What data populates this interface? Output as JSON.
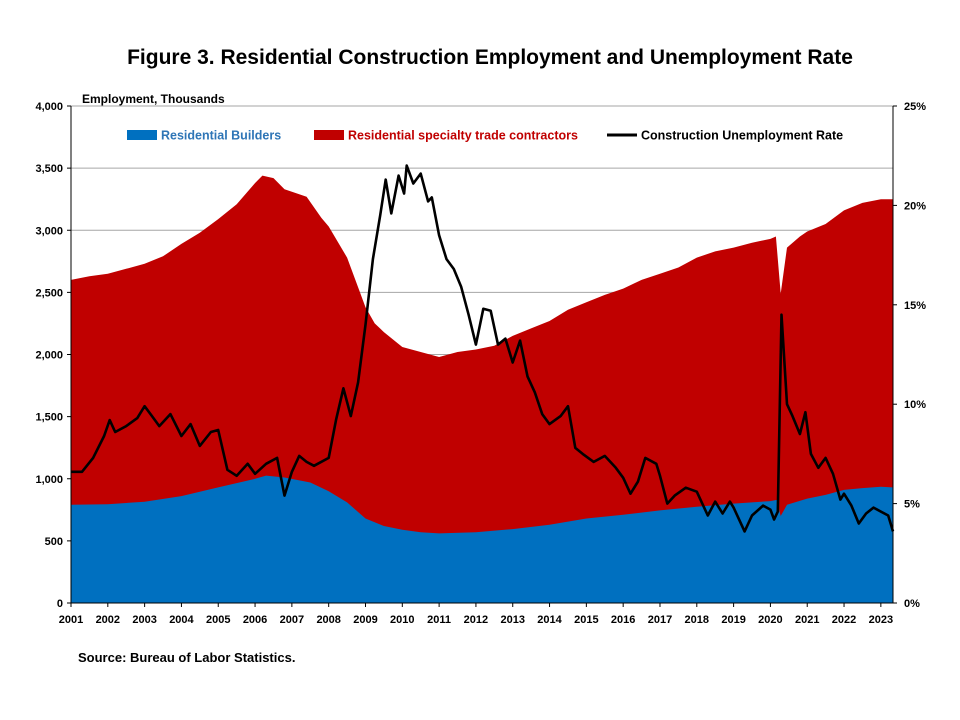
{
  "title": "Figure 3. Residential Construction Employment and Unemployment Rate",
  "source": "Source: Bureau of Labor Statistics.",
  "colors": {
    "builders": "#0070C0",
    "specialty": "#C00000",
    "rate": "#000000",
    "grid": "#A6A6A6"
  },
  "chart_data": {
    "type": "area",
    "title": "Figure 3. Residential Construction Employment and Unemployment Rate",
    "ylabel": "Employment, Thousands",
    "ylim": [
      0,
      4000
    ],
    "y2lim": [
      0,
      25
    ],
    "x_range": [
      2001,
      2023.33
    ],
    "y_ticks": [
      "0",
      "500",
      "1,000",
      "1,500",
      "2,000",
      "2,500",
      "3,000",
      "3,500",
      "4,000"
    ],
    "y2_ticks": [
      "0%",
      "5%",
      "10%",
      "15%",
      "20%",
      "25%"
    ],
    "x_ticks": [
      "2001",
      "2002",
      "2003",
      "2004",
      "2005",
      "2006",
      "2007",
      "2008",
      "2009",
      "2010",
      "2011",
      "2012",
      "2013",
      "2014",
      "2015",
      "2016",
      "2017",
      "2018",
      "2019",
      "2020",
      "2021",
      "2022",
      "2023"
    ],
    "grid": true,
    "legend_position": "top",
    "series": [
      {
        "name": "Residential Builders",
        "type": "area",
        "axis": "left",
        "points": [
          [
            2001.0,
            790
          ],
          [
            2002.0,
            795
          ],
          [
            2003.0,
            815
          ],
          [
            2004.0,
            860
          ],
          [
            2005.0,
            930
          ],
          [
            2006.0,
            1000
          ],
          [
            2006.3,
            1025
          ],
          [
            2006.8,
            1010
          ],
          [
            2007.5,
            970
          ],
          [
            2008.0,
            900
          ],
          [
            2008.5,
            810
          ],
          [
            2009.0,
            680
          ],
          [
            2009.5,
            620
          ],
          [
            2010.0,
            590
          ],
          [
            2010.5,
            570
          ],
          [
            2011.0,
            560
          ],
          [
            2012.0,
            570
          ],
          [
            2013.0,
            595
          ],
          [
            2014.0,
            630
          ],
          [
            2015.0,
            680
          ],
          [
            2016.0,
            710
          ],
          [
            2017.0,
            745
          ],
          [
            2018.0,
            775
          ],
          [
            2019.0,
            800
          ],
          [
            2020.0,
            820
          ],
          [
            2020.17,
            830
          ],
          [
            2020.28,
            700
          ],
          [
            2020.45,
            790
          ],
          [
            2021.0,
            840
          ],
          [
            2021.5,
            870
          ],
          [
            2022.0,
            910
          ],
          [
            2022.5,
            925
          ],
          [
            2023.0,
            935
          ],
          [
            2023.33,
            930
          ]
        ]
      },
      {
        "name": "Residential specialty trade contractors",
        "type": "stacked-area",
        "axis": "left",
        "points": [
          [
            2001.0,
            2600
          ],
          [
            2001.5,
            2630
          ],
          [
            2002.0,
            2650
          ],
          [
            2002.5,
            2690
          ],
          [
            2003.0,
            2730
          ],
          [
            2003.5,
            2790
          ],
          [
            2004.0,
            2890
          ],
          [
            2004.5,
            2980
          ],
          [
            2005.0,
            3090
          ],
          [
            2005.5,
            3210
          ],
          [
            2006.0,
            3380
          ],
          [
            2006.2,
            3440
          ],
          [
            2006.5,
            3420
          ],
          [
            2006.8,
            3330
          ],
          [
            2007.0,
            3310
          ],
          [
            2007.4,
            3270
          ],
          [
            2007.8,
            3100
          ],
          [
            2008.0,
            3030
          ],
          [
            2008.5,
            2780
          ],
          [
            2009.0,
            2380
          ],
          [
            2009.25,
            2250
          ],
          [
            2009.5,
            2180
          ],
          [
            2010.0,
            2060
          ],
          [
            2010.5,
            2020
          ],
          [
            2011.0,
            1980
          ],
          [
            2011.5,
            2020
          ],
          [
            2012.0,
            2040
          ],
          [
            2012.5,
            2070
          ],
          [
            2013.0,
            2150
          ],
          [
            2013.5,
            2210
          ],
          [
            2014.0,
            2270
          ],
          [
            2014.5,
            2360
          ],
          [
            2015.0,
            2420
          ],
          [
            2015.5,
            2480
          ],
          [
            2016.0,
            2530
          ],
          [
            2016.5,
            2600
          ],
          [
            2017.0,
            2650
          ],
          [
            2017.5,
            2700
          ],
          [
            2018.0,
            2780
          ],
          [
            2018.5,
            2830
          ],
          [
            2019.0,
            2860
          ],
          [
            2019.5,
            2900
          ],
          [
            2020.0,
            2930
          ],
          [
            2020.15,
            2950
          ],
          [
            2020.28,
            2490
          ],
          [
            2020.45,
            2860
          ],
          [
            2020.8,
            2950
          ],
          [
            2021.0,
            2990
          ],
          [
            2021.5,
            3050
          ],
          [
            2022.0,
            3160
          ],
          [
            2022.5,
            3220
          ],
          [
            2023.0,
            3250
          ],
          [
            2023.33,
            3250
          ]
        ]
      },
      {
        "name": "Construction Unemployment Rate",
        "type": "line",
        "axis": "right",
        "points": [
          [
            2001.0,
            6.6
          ],
          [
            2001.3,
            6.6
          ],
          [
            2001.6,
            7.3
          ],
          [
            2001.9,
            8.4
          ],
          [
            2002.05,
            9.2
          ],
          [
            2002.2,
            8.6
          ],
          [
            2002.5,
            8.9
          ],
          [
            2002.8,
            9.3
          ],
          [
            2003.0,
            9.9
          ],
          [
            2003.2,
            9.4
          ],
          [
            2003.4,
            8.9
          ],
          [
            2003.7,
            9.5
          ],
          [
            2004.0,
            8.4
          ],
          [
            2004.25,
            9.0
          ],
          [
            2004.5,
            7.9
          ],
          [
            2004.8,
            8.6
          ],
          [
            2005.0,
            8.7
          ],
          [
            2005.25,
            6.7
          ],
          [
            2005.5,
            6.4
          ],
          [
            2005.8,
            7.0
          ],
          [
            2006.0,
            6.5
          ],
          [
            2006.3,
            7.0
          ],
          [
            2006.6,
            7.3
          ],
          [
            2006.8,
            5.4
          ],
          [
            2007.0,
            6.6
          ],
          [
            2007.2,
            7.4
          ],
          [
            2007.4,
            7.1
          ],
          [
            2007.6,
            6.9
          ],
          [
            2008.0,
            7.3
          ],
          [
            2008.2,
            9.2
          ],
          [
            2008.4,
            10.8
          ],
          [
            2008.6,
            9.4
          ],
          [
            2008.8,
            11.1
          ],
          [
            2009.0,
            14.0
          ],
          [
            2009.2,
            17.3
          ],
          [
            2009.4,
            19.5
          ],
          [
            2009.55,
            21.3
          ],
          [
            2009.7,
            19.6
          ],
          [
            2009.9,
            21.5
          ],
          [
            2010.05,
            20.6
          ],
          [
            2010.12,
            22.0
          ],
          [
            2010.3,
            21.1
          ],
          [
            2010.5,
            21.6
          ],
          [
            2010.7,
            20.2
          ],
          [
            2010.8,
            20.4
          ],
          [
            2011.0,
            18.5
          ],
          [
            2011.2,
            17.3
          ],
          [
            2011.4,
            16.8
          ],
          [
            2011.6,
            15.9
          ],
          [
            2011.8,
            14.5
          ],
          [
            2012.0,
            13.0
          ],
          [
            2012.2,
            14.8
          ],
          [
            2012.4,
            14.7
          ],
          [
            2012.6,
            13.0
          ],
          [
            2012.8,
            13.3
          ],
          [
            2013.0,
            12.1
          ],
          [
            2013.2,
            13.2
          ],
          [
            2013.4,
            11.4
          ],
          [
            2013.6,
            10.6
          ],
          [
            2013.8,
            9.5
          ],
          [
            2014.0,
            9.0
          ],
          [
            2014.3,
            9.4
          ],
          [
            2014.5,
            9.9
          ],
          [
            2014.7,
            7.8
          ],
          [
            2014.9,
            7.5
          ],
          [
            2015.2,
            7.1
          ],
          [
            2015.5,
            7.4
          ],
          [
            2015.8,
            6.8
          ],
          [
            2016.0,
            6.3
          ],
          [
            2016.2,
            5.5
          ],
          [
            2016.4,
            6.1
          ],
          [
            2016.6,
            7.3
          ],
          [
            2016.9,
            7.0
          ],
          [
            2017.0,
            6.4
          ],
          [
            2017.2,
            5.0
          ],
          [
            2017.4,
            5.4
          ],
          [
            2017.7,
            5.8
          ],
          [
            2018.0,
            5.6
          ],
          [
            2018.3,
            4.4
          ],
          [
            2018.5,
            5.1
          ],
          [
            2018.7,
            4.5
          ],
          [
            2018.9,
            5.1
          ],
          [
            2019.0,
            4.8
          ],
          [
            2019.3,
            3.6
          ],
          [
            2019.5,
            4.4
          ],
          [
            2019.8,
            4.9
          ],
          [
            2020.0,
            4.7
          ],
          [
            2020.1,
            4.2
          ],
          [
            2020.2,
            4.6
          ],
          [
            2020.3,
            14.5
          ],
          [
            2020.45,
            10.0
          ],
          [
            2020.6,
            9.4
          ],
          [
            2020.8,
            8.5
          ],
          [
            2020.95,
            9.6
          ],
          [
            2021.1,
            7.5
          ],
          [
            2021.3,
            6.8
          ],
          [
            2021.5,
            7.3
          ],
          [
            2021.7,
            6.5
          ],
          [
            2021.9,
            5.2
          ],
          [
            2022.0,
            5.5
          ],
          [
            2022.2,
            4.9
          ],
          [
            2022.4,
            4.0
          ],
          [
            2022.6,
            4.5
          ],
          [
            2022.8,
            4.8
          ],
          [
            2023.0,
            4.6
          ],
          [
            2023.2,
            4.4
          ],
          [
            2023.33,
            3.6
          ]
        ]
      }
    ]
  }
}
